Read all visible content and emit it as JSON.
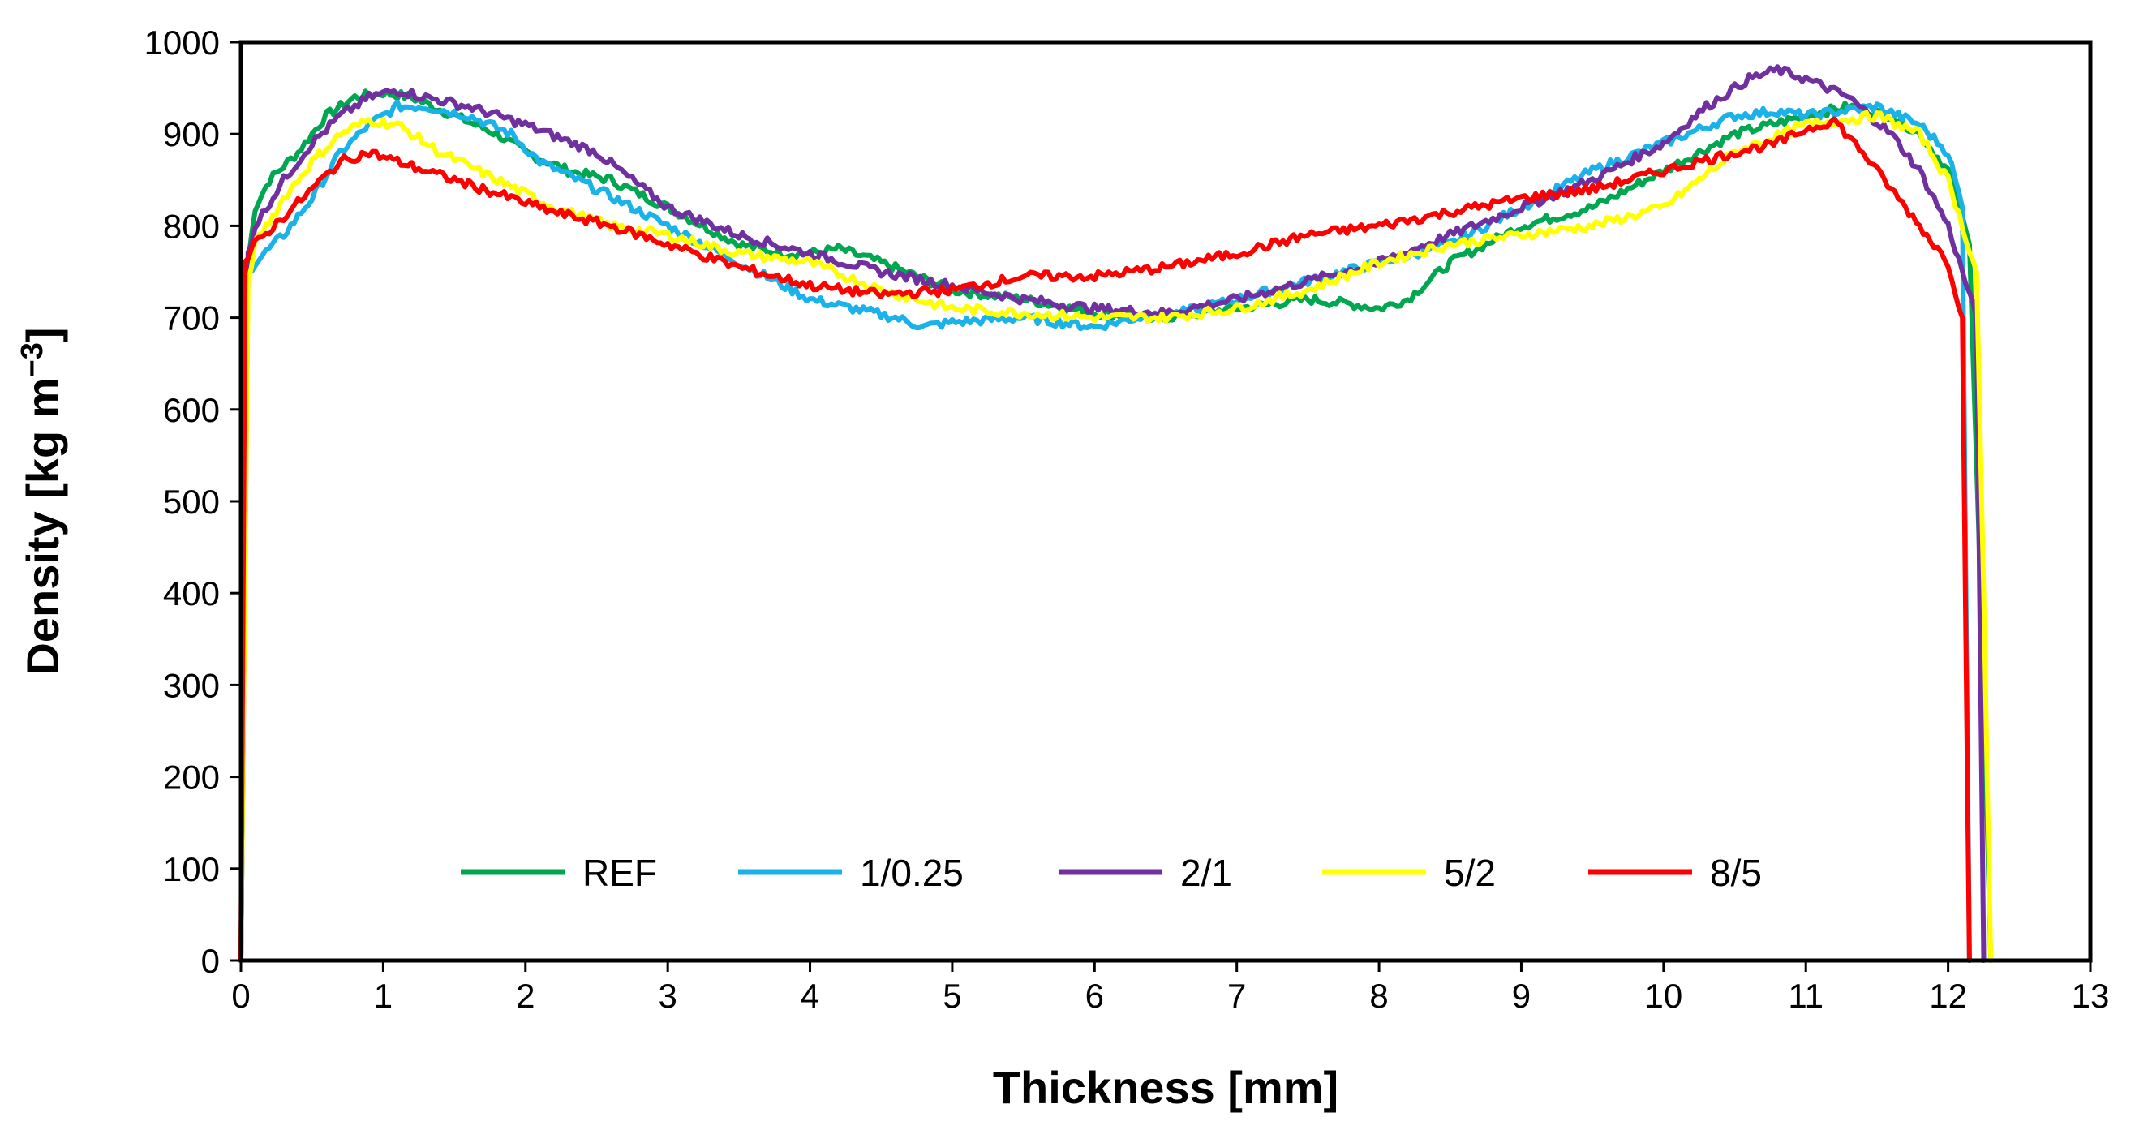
{
  "chart_data": {
    "type": "line",
    "title": "",
    "xlabel": "Thickness [mm]",
    "ylabel_main": "Density [kg m",
    "ylabel_sup": "−3",
    "ylabel_close": "]",
    "xlim": [
      0,
      13
    ],
    "ylim": [
      0,
      1000
    ],
    "xticks": [
      0,
      1,
      2,
      3,
      4,
      5,
      6,
      7,
      8,
      9,
      10,
      11,
      12,
      13
    ],
    "yticks": [
      0,
      100,
      200,
      300,
      400,
      500,
      600,
      700,
      800,
      900,
      1000
    ],
    "grid": false,
    "legend_position": "bottom-center",
    "series": [
      {
        "name": "REF",
        "color": "#00a650",
        "x": [
          0,
          0.05,
          0.1,
          0.2,
          0.4,
          0.6,
          0.8,
          1.0,
          1.2,
          1.5,
          1.8,
          2.0,
          2.3,
          2.6,
          3.0,
          3.5,
          3.8,
          4.0,
          4.2,
          4.5,
          5.0,
          5.5,
          6.0,
          6.5,
          7.0,
          7.5,
          7.8,
          8.0,
          8.2,
          8.5,
          9.0,
          9.5,
          10.0,
          10.5,
          11.0,
          11.3,
          11.6,
          11.8,
          12.0,
          12.15,
          12.25,
          12.3
        ],
        "y": [
          0,
          760,
          820,
          850,
          880,
          920,
          940,
          945,
          940,
          920,
          900,
          880,
          860,
          850,
          820,
          780,
          770,
          770,
          775,
          760,
          730,
          720,
          705,
          700,
          710,
          720,
          715,
          710,
          720,
          760,
          800,
          820,
          860,
          900,
          920,
          930,
          920,
          900,
          860,
          780,
          300,
          0
        ]
      },
      {
        "name": "1/0.25",
        "color": "#1ab2e8",
        "x": [
          0,
          0.05,
          0.1,
          0.3,
          0.5,
          0.7,
          0.9,
          1.1,
          1.3,
          1.6,
          1.9,
          2.1,
          2.5,
          3.0,
          3.5,
          4.0,
          4.3,
          4.6,
          4.8,
          5.0,
          5.5,
          6.0,
          6.3,
          6.6,
          7.0,
          7.5,
          8.0,
          8.5,
          9.0,
          9.5,
          10.0,
          10.5,
          10.8,
          11.0,
          11.5,
          11.8,
          12.0,
          12.1,
          12.15
        ],
        "y": [
          0,
          750,
          760,
          790,
          830,
          880,
          910,
          930,
          930,
          920,
          900,
          870,
          840,
          800,
          760,
          720,
          710,
          700,
          690,
          695,
          700,
          690,
          700,
          705,
          720,
          740,
          760,
          780,
          820,
          860,
          890,
          920,
          925,
          920,
          930,
          910,
          880,
          820,
          0
        ]
      },
      {
        "name": "2/1",
        "color": "#7030a0",
        "x": [
          0,
          0.05,
          0.1,
          0.3,
          0.5,
          0.7,
          0.9,
          1.1,
          1.3,
          1.6,
          2.0,
          2.5,
          3.0,
          3.5,
          4.0,
          4.5,
          5.0,
          5.5,
          6.0,
          6.5,
          7.0,
          7.5,
          8.0,
          8.5,
          9.0,
          9.5,
          10.0,
          10.3,
          10.6,
          10.8,
          11.0,
          11.3,
          11.6,
          11.8,
          12.0,
          12.2,
          12.25
        ],
        "y": [
          0,
          770,
          800,
          850,
          890,
          920,
          940,
          948,
          940,
          930,
          910,
          880,
          820,
          790,
          770,
          750,
          735,
          720,
          710,
          705,
          720,
          740,
          760,
          790,
          820,
          850,
          890,
          930,
          960,
          970,
          960,
          940,
          900,
          860,
          800,
          700,
          0
        ]
      },
      {
        "name": "5/2",
        "color": "#ffff00",
        "x": [
          0,
          0.05,
          0.1,
          0.3,
          0.5,
          0.7,
          0.9,
          1.1,
          1.4,
          1.8,
          2.2,
          2.6,
          3.0,
          3.5,
          4.0,
          4.5,
          5.0,
          5.5,
          6.0,
          6.5,
          7.0,
          7.5,
          8.0,
          8.5,
          9.0,
          9.5,
          10.0,
          10.5,
          11.0,
          11.5,
          11.8,
          12.0,
          12.2,
          12.25,
          12.3
        ],
        "y": [
          0,
          740,
          780,
          830,
          870,
          900,
          915,
          910,
          880,
          850,
          820,
          800,
          790,
          770,
          760,
          730,
          710,
          705,
          700,
          700,
          710,
          730,
          760,
          780,
          790,
          800,
          820,
          880,
          910,
          920,
          900,
          850,
          750,
          400,
          0
        ]
      },
      {
        "name": "8/5",
        "color": "#ff0000",
        "x": [
          0,
          0.03,
          0.1,
          0.3,
          0.5,
          0.7,
          0.9,
          1.2,
          1.5,
          1.8,
          2.2,
          2.6,
          3.0,
          3.5,
          4.0,
          4.5,
          5.0,
          5.5,
          6.0,
          6.5,
          7.0,
          7.5,
          8.0,
          8.5,
          9.0,
          9.5,
          10.0,
          10.5,
          10.8,
          11.0,
          11.2,
          11.4,
          11.7,
          12.0,
          12.1,
          12.15
        ],
        "y": [
          0,
          760,
          780,
          810,
          840,
          870,
          880,
          865,
          850,
          835,
          815,
          800,
          780,
          755,
          735,
          725,
          730,
          745,
          745,
          755,
          770,
          790,
          800,
          815,
          830,
          840,
          860,
          880,
          890,
          905,
          915,
          880,
          820,
          760,
          700,
          0
        ]
      }
    ]
  }
}
